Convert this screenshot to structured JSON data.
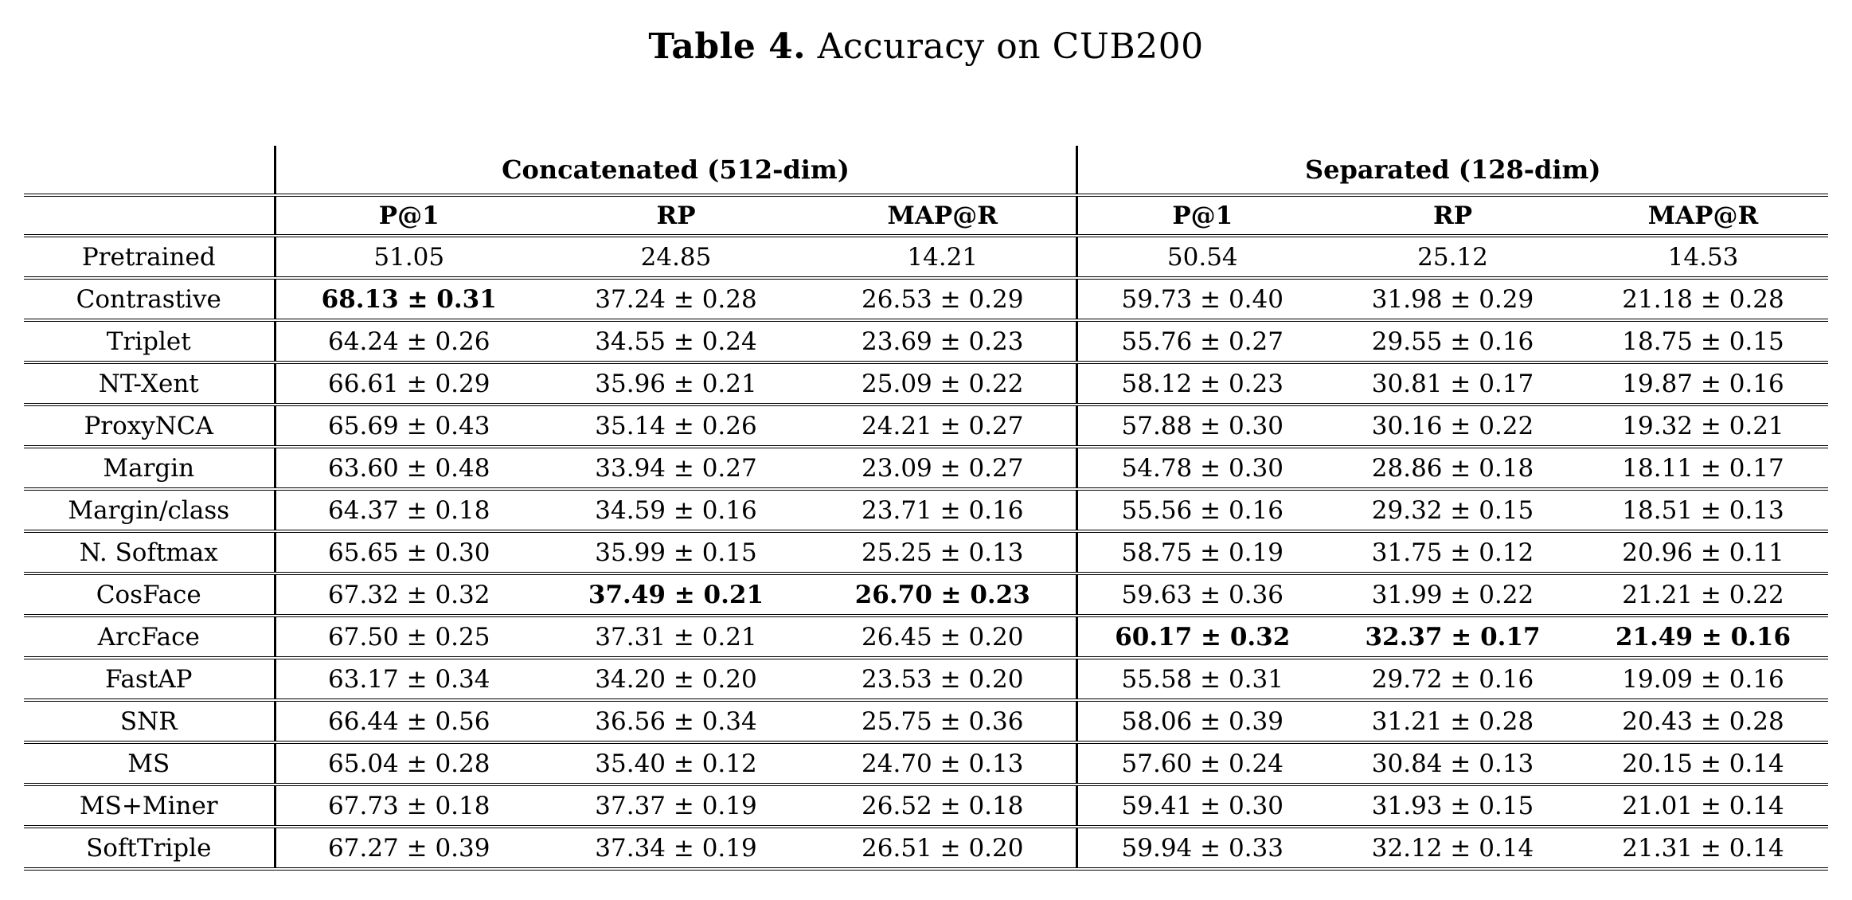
{
  "title": {
    "prefix": "Table 4.",
    "rest": " Accuracy on CUB200"
  },
  "table": {
    "group_headers": [
      "Concatenated (512-dim)",
      "Separated (128-dim)"
    ],
    "metric_headers": [
      "P@1",
      "RP",
      "MAP@R"
    ],
    "rows": [
      {
        "method": "Pretrained",
        "cells": [
          {
            "t": "51.05",
            "b": false
          },
          {
            "t": "24.85",
            "b": false
          },
          {
            "t": "14.21",
            "b": false
          },
          {
            "t": "50.54",
            "b": false
          },
          {
            "t": "25.12",
            "b": false
          },
          {
            "t": "14.53",
            "b": false
          }
        ]
      },
      {
        "method": "Contrastive",
        "cells": [
          {
            "t": "68.13 ± 0.31",
            "b": true
          },
          {
            "t": "37.24 ± 0.28",
            "b": false
          },
          {
            "t": "26.53 ± 0.29",
            "b": false
          },
          {
            "t": "59.73 ± 0.40",
            "b": false
          },
          {
            "t": "31.98 ± 0.29",
            "b": false
          },
          {
            "t": "21.18 ± 0.28",
            "b": false
          }
        ]
      },
      {
        "method": "Triplet",
        "cells": [
          {
            "t": "64.24 ± 0.26",
            "b": false
          },
          {
            "t": "34.55 ± 0.24",
            "b": false
          },
          {
            "t": "23.69 ± 0.23",
            "b": false
          },
          {
            "t": "55.76 ± 0.27",
            "b": false
          },
          {
            "t": "29.55 ± 0.16",
            "b": false
          },
          {
            "t": "18.75 ± 0.15",
            "b": false
          }
        ]
      },
      {
        "method": "NT-Xent",
        "cells": [
          {
            "t": "66.61 ± 0.29",
            "b": false
          },
          {
            "t": "35.96 ± 0.21",
            "b": false
          },
          {
            "t": "25.09 ± 0.22",
            "b": false
          },
          {
            "t": "58.12 ± 0.23",
            "b": false
          },
          {
            "t": "30.81 ± 0.17",
            "b": false
          },
          {
            "t": "19.87 ± 0.16",
            "b": false
          }
        ]
      },
      {
        "method": "ProxyNCA",
        "cells": [
          {
            "t": "65.69 ± 0.43",
            "b": false
          },
          {
            "t": "35.14 ± 0.26",
            "b": false
          },
          {
            "t": "24.21 ± 0.27",
            "b": false
          },
          {
            "t": "57.88 ± 0.30",
            "b": false
          },
          {
            "t": "30.16 ± 0.22",
            "b": false
          },
          {
            "t": "19.32 ± 0.21",
            "b": false
          }
        ]
      },
      {
        "method": "Margin",
        "cells": [
          {
            "t": "63.60 ± 0.48",
            "b": false
          },
          {
            "t": "33.94 ± 0.27",
            "b": false
          },
          {
            "t": "23.09 ± 0.27",
            "b": false
          },
          {
            "t": "54.78 ± 0.30",
            "b": false
          },
          {
            "t": "28.86 ± 0.18",
            "b": false
          },
          {
            "t": "18.11 ± 0.17",
            "b": false
          }
        ]
      },
      {
        "method": "Margin/class",
        "cells": [
          {
            "t": "64.37 ± 0.18",
            "b": false
          },
          {
            "t": "34.59 ± 0.16",
            "b": false
          },
          {
            "t": "23.71 ± 0.16",
            "b": false
          },
          {
            "t": "55.56 ± 0.16",
            "b": false
          },
          {
            "t": "29.32 ± 0.15",
            "b": false
          },
          {
            "t": "18.51 ± 0.13",
            "b": false
          }
        ]
      },
      {
        "method": "N. Softmax",
        "cells": [
          {
            "t": "65.65 ± 0.30",
            "b": false
          },
          {
            "t": "35.99 ± 0.15",
            "b": false
          },
          {
            "t": "25.25 ± 0.13",
            "b": false
          },
          {
            "t": "58.75 ± 0.19",
            "b": false
          },
          {
            "t": "31.75 ± 0.12",
            "b": false
          },
          {
            "t": "20.96 ± 0.11",
            "b": false
          }
        ]
      },
      {
        "method": "CosFace",
        "cells": [
          {
            "t": "67.32 ± 0.32",
            "b": false
          },
          {
            "t": "37.49 ± 0.21",
            "b": true
          },
          {
            "t": "26.70 ± 0.23",
            "b": true
          },
          {
            "t": "59.63 ± 0.36",
            "b": false
          },
          {
            "t": "31.99 ± 0.22",
            "b": false
          },
          {
            "t": "21.21 ± 0.22",
            "b": false
          }
        ]
      },
      {
        "method": "ArcFace",
        "cells": [
          {
            "t": "67.50 ± 0.25",
            "b": false
          },
          {
            "t": "37.31 ± 0.21",
            "b": false
          },
          {
            "t": "26.45 ± 0.20",
            "b": false
          },
          {
            "t": "60.17 ± 0.32",
            "b": true
          },
          {
            "t": "32.37 ± 0.17",
            "b": true
          },
          {
            "t": "21.49 ± 0.16",
            "b": true
          }
        ]
      },
      {
        "method": "FastAP",
        "cells": [
          {
            "t": "63.17 ± 0.34",
            "b": false
          },
          {
            "t": "34.20 ± 0.20",
            "b": false
          },
          {
            "t": "23.53 ± 0.20",
            "b": false
          },
          {
            "t": "55.58 ± 0.31",
            "b": false
          },
          {
            "t": "29.72 ± 0.16",
            "b": false
          },
          {
            "t": "19.09 ± 0.16",
            "b": false
          }
        ]
      },
      {
        "method": "SNR",
        "cells": [
          {
            "t": "66.44 ± 0.56",
            "b": false
          },
          {
            "t": "36.56 ± 0.34",
            "b": false
          },
          {
            "t": "25.75 ± 0.36",
            "b": false
          },
          {
            "t": "58.06 ± 0.39",
            "b": false
          },
          {
            "t": "31.21 ± 0.28",
            "b": false
          },
          {
            "t": "20.43 ± 0.28",
            "b": false
          }
        ]
      },
      {
        "method": "MS",
        "cells": [
          {
            "t": "65.04 ± 0.28",
            "b": false
          },
          {
            "t": "35.40 ± 0.12",
            "b": false
          },
          {
            "t": "24.70 ± 0.13",
            "b": false
          },
          {
            "t": "57.60 ± 0.24",
            "b": false
          },
          {
            "t": "30.84 ± 0.13",
            "b": false
          },
          {
            "t": "20.15 ± 0.14",
            "b": false
          }
        ]
      },
      {
        "method": "MS+Miner",
        "cells": [
          {
            "t": "67.73 ± 0.18",
            "b": false
          },
          {
            "t": "37.37 ± 0.19",
            "b": false
          },
          {
            "t": "26.52 ± 0.18",
            "b": false
          },
          {
            "t": "59.41 ± 0.30",
            "b": false
          },
          {
            "t": "31.93 ± 0.15",
            "b": false
          },
          {
            "t": "21.01 ± 0.14",
            "b": false
          }
        ]
      },
      {
        "method": "SoftTriple",
        "cells": [
          {
            "t": "67.27 ± 0.39",
            "b": false
          },
          {
            "t": "37.34 ± 0.19",
            "b": false
          },
          {
            "t": "26.51 ± 0.20",
            "b": false
          },
          {
            "t": "59.94 ± 0.33",
            "b": false
          },
          {
            "t": "32.12 ± 0.14",
            "b": false
          },
          {
            "t": "21.31 ± 0.14",
            "b": false
          }
        ]
      }
    ]
  }
}
